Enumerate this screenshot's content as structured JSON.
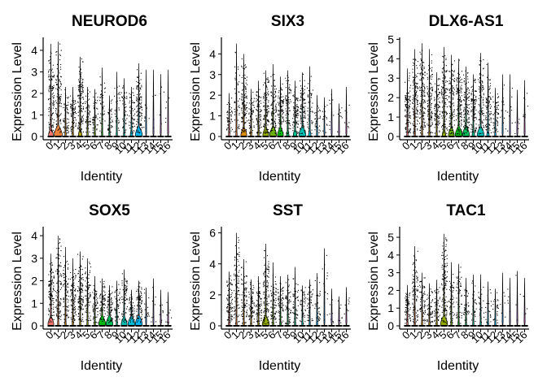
{
  "figure": {
    "panels": [
      {
        "title": "NEUROD6",
        "xlabel": "Identity",
        "ylabel": "Expression Level"
      },
      {
        "title": "SIX3",
        "xlabel": "Identity",
        "ylabel": "Expression Level"
      },
      {
        "title": "DLX6-AS1",
        "xlabel": "Identity",
        "ylabel": "Expression Level"
      },
      {
        "title": "SOX5",
        "xlabel": "Identity",
        "ylabel": "Expression Level"
      },
      {
        "title": "SST",
        "xlabel": "Identity",
        "ylabel": "Expression Level"
      },
      {
        "title": "TAC1",
        "xlabel": "Identity",
        "ylabel": "Expression Level"
      }
    ]
  },
  "cluster_colors": [
    "#F8766D",
    "#EC8239",
    "#DB8E00",
    "#C79800",
    "#AFA100",
    "#93AA00",
    "#6BB100",
    "#00B813",
    "#00BD5C",
    "#00C08D",
    "#00C0B4",
    "#00BCD6",
    "#00B3F2",
    "#29A3FF",
    "#9C8DFF",
    "#D277FF",
    "#F166E8",
    "#FF61C7",
    "#FF689E"
  ],
  "chart_data": [
    {
      "type": "violin",
      "title": "NEUROD6",
      "xlabel": "Identity",
      "ylabel": "Expression Level",
      "categories": [
        "0",
        "1",
        "2",
        "3",
        "4",
        "5",
        "6",
        "7",
        "8",
        "9",
        "10",
        "11",
        "12",
        "13",
        "14",
        "15",
        "16"
      ],
      "yticks": [
        0,
        1,
        2,
        3,
        4
      ],
      "ylim": [
        -0.1,
        4.6
      ],
      "max_values": [
        4.3,
        4.4,
        2.3,
        2.3,
        3.7,
        2.3,
        2.2,
        3.2,
        1.9,
        3.0,
        2.7,
        2.3,
        3.4,
        3.1,
        3.1,
        2.9,
        3.1
      ],
      "point_fraction": [
        0.8,
        0.75,
        0.4,
        0.45,
        0.85,
        0.35,
        0.3,
        0.3,
        0.25,
        0.2,
        0.3,
        0.35,
        0.8,
        0.05,
        0.03,
        0.03,
        0.03
      ],
      "violin_widths": [
        0.2,
        0.35,
        0.05,
        0.05,
        0.15,
        0.05,
        0.05,
        0.05,
        0.05,
        0.05,
        0.05,
        0.1,
        0.3,
        0.02,
        0.02,
        0.02,
        0.02
      ]
    },
    {
      "type": "violin",
      "title": "SIX3",
      "xlabel": "Identity",
      "ylabel": "Expression Level",
      "categories": [
        "0",
        "1",
        "2",
        "3",
        "4",
        "5",
        "6",
        "7",
        "8",
        "9",
        "10",
        "11",
        "12",
        "13",
        "14",
        "15",
        "16"
      ],
      "yticks": [
        0,
        1,
        2,
        3,
        4
      ],
      "ylim": [
        -0.1,
        4.8
      ],
      "max_values": [
        2.1,
        4.5,
        4.0,
        2.3,
        2.7,
        3.2,
        3.5,
        2.9,
        3.2,
        2.7,
        3.1,
        3.4,
        2.0,
        1.9,
        2.3,
        1.6,
        2.4
      ],
      "point_fraction": [
        0.3,
        0.3,
        0.85,
        0.4,
        0.5,
        0.75,
        0.7,
        0.65,
        0.5,
        0.6,
        0.65,
        0.3,
        0.2,
        0.1,
        0.05,
        0.05,
        0.05
      ],
      "violin_widths": [
        0.05,
        0.05,
        0.25,
        0.05,
        0.05,
        0.25,
        0.3,
        0.25,
        0.1,
        0.15,
        0.3,
        0.1,
        0.05,
        0.02,
        0.02,
        0.02,
        0.02
      ]
    },
    {
      "type": "violin",
      "title": "DLX6-AS1",
      "xlabel": "Identity",
      "ylabel": "Expression Level",
      "categories": [
        "0",
        "1",
        "2",
        "3",
        "4",
        "5",
        "6",
        "7",
        "8",
        "9",
        "10",
        "11",
        "12",
        "13",
        "14",
        "15",
        "16"
      ],
      "yticks": [
        0,
        1,
        2,
        3,
        4,
        5
      ],
      "ylim": [
        -0.1,
        5.1
      ],
      "max_values": [
        3.5,
        4.5,
        4.8,
        4.5,
        3.3,
        4.6,
        4.2,
        4.0,
        3.6,
        3.2,
        4.3,
        3.8,
        2.5,
        3.2,
        3.2,
        2.4,
        2.9
      ],
      "point_fraction": [
        0.75,
        0.85,
        0.9,
        0.8,
        0.6,
        0.85,
        0.8,
        0.8,
        0.75,
        0.7,
        0.7,
        0.6,
        0.4,
        0.1,
        0.05,
        0.05,
        0.05
      ],
      "violin_widths": [
        0.05,
        0.05,
        0.05,
        0.05,
        0.05,
        0.15,
        0.25,
        0.3,
        0.3,
        0.1,
        0.3,
        0.1,
        0.05,
        0.02,
        0.02,
        0.02,
        0.02
      ]
    },
    {
      "type": "violin",
      "title": "SOX5",
      "xlabel": "Identity",
      "ylabel": "Expression Level",
      "categories": [
        "0",
        "1",
        "2",
        "3",
        "4",
        "5",
        "6",
        "7",
        "8",
        "9",
        "10",
        "11",
        "12",
        "13",
        "14",
        "15",
        "16"
      ],
      "yticks": [
        0,
        1,
        2,
        3,
        4
      ],
      "ylim": [
        -0.1,
        4.4
      ],
      "max_values": [
        3.2,
        4.0,
        3.5,
        3.0,
        3.3,
        3.0,
        2.2,
        2.1,
        1.8,
        2.0,
        2.5,
        1.6,
        2.0,
        1.7,
        2.1,
        1.6,
        1.5
      ],
      "point_fraction": [
        0.75,
        0.7,
        0.55,
        0.6,
        0.85,
        0.5,
        0.4,
        0.45,
        0.45,
        0.3,
        0.45,
        0.4,
        0.55,
        0.1,
        0.05,
        0.05,
        0.05
      ],
      "violin_widths": [
        0.25,
        0.05,
        0.05,
        0.05,
        0.05,
        0.05,
        0.05,
        0.3,
        0.3,
        0.05,
        0.25,
        0.3,
        0.3,
        0.02,
        0.02,
        0.02,
        0.02
      ]
    },
    {
      "type": "violin",
      "title": "SST",
      "xlabel": "Identity",
      "ylabel": "Expression Level",
      "categories": [
        "0",
        "1",
        "2",
        "3",
        "4",
        "5",
        "6",
        "7",
        "8",
        "9",
        "10",
        "11",
        "12",
        "13",
        "14",
        "15",
        "16"
      ],
      "yticks": [
        0,
        2,
        4,
        6
      ],
      "ylim": [
        -0.2,
        6.4
      ],
      "max_values": [
        3.5,
        6.0,
        4.3,
        3.0,
        3.2,
        5.3,
        4.1,
        3.2,
        3.3,
        3.8,
        2.6,
        3.0,
        3.4,
        5.0,
        2.4,
        1.9,
        2.5
      ],
      "point_fraction": [
        0.6,
        0.65,
        0.55,
        0.45,
        0.5,
        0.8,
        0.5,
        0.45,
        0.4,
        0.35,
        0.3,
        0.3,
        0.25,
        0.1,
        0.05,
        0.05,
        0.05
      ],
      "violin_widths": [
        0.05,
        0.05,
        0.05,
        0.05,
        0.05,
        0.3,
        0.05,
        0.05,
        0.05,
        0.05,
        0.05,
        0.05,
        0.05,
        0.02,
        0.02,
        0.02,
        0.02
      ]
    },
    {
      "type": "violin",
      "title": "TAC1",
      "xlabel": "Identity",
      "ylabel": "Expression Level",
      "categories": [
        "0",
        "1",
        "2",
        "3",
        "4",
        "5",
        "6",
        "7",
        "8",
        "9",
        "10",
        "11",
        "12",
        "13",
        "14",
        "15",
        "16"
      ],
      "yticks": [
        0,
        1,
        2,
        3,
        4,
        5
      ],
      "ylim": [
        -0.1,
        5.6
      ],
      "max_values": [
        2.3,
        4.5,
        3.0,
        2.4,
        2.6,
        5.2,
        3.6,
        3.5,
        2.7,
        2.9,
        2.9,
        2.5,
        2.1,
        3.0,
        2.7,
        3.1,
        2.7
      ],
      "point_fraction": [
        0.4,
        0.6,
        0.45,
        0.35,
        0.35,
        0.85,
        0.35,
        0.35,
        0.25,
        0.2,
        0.15,
        0.15,
        0.15,
        0.05,
        0.03,
        0.03,
        0.03
      ],
      "violin_widths": [
        0.05,
        0.05,
        0.05,
        0.05,
        0.05,
        0.3,
        0.05,
        0.05,
        0.05,
        0.05,
        0.05,
        0.05,
        0.05,
        0.02,
        0.02,
        0.02,
        0.02
      ]
    }
  ]
}
